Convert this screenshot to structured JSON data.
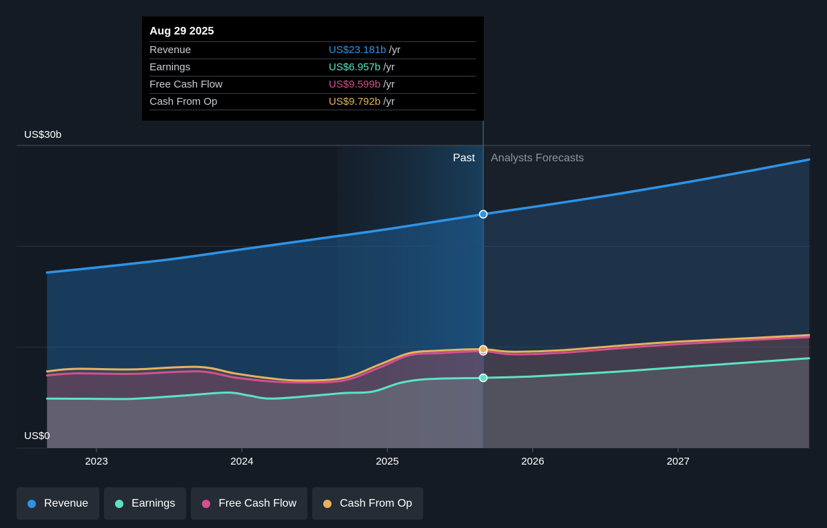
{
  "chart_data": {
    "type": "area",
    "y_axis": {
      "top_label": "US$30b",
      "bottom_label": "US$0",
      "ylim": [
        0,
        30
      ],
      "gridlines": [
        0,
        10,
        20,
        30
      ]
    },
    "x_axis": {
      "tick_labels": [
        "2023",
        "2024",
        "2025",
        "2026",
        "2027"
      ],
      "ticks": [
        2023,
        2024,
        2025,
        2026,
        2027
      ]
    },
    "divider": {
      "past_label": "Past",
      "forecast_label": "Analysts Forecasts",
      "x": 2025.66
    },
    "series": [
      {
        "name": "Revenue",
        "color": "#2e93e6",
        "points": [
          [
            2022.66,
            17.4
          ],
          [
            2023.0,
            17.9
          ],
          [
            2023.5,
            18.7
          ],
          [
            2024.0,
            19.7
          ],
          [
            2024.5,
            20.7
          ],
          [
            2025.0,
            21.7
          ],
          [
            2025.66,
            23.18
          ],
          [
            2026.0,
            23.9
          ],
          [
            2026.5,
            25.0
          ],
          [
            2027.0,
            26.2
          ],
          [
            2027.5,
            27.5
          ],
          [
            2027.9,
            28.6
          ]
        ]
      },
      {
        "name": "Earnings",
        "color": "#5be3c4",
        "points": [
          [
            2022.66,
            4.9
          ],
          [
            2023.0,
            4.88
          ],
          [
            2023.25,
            4.88
          ],
          [
            2023.6,
            5.2
          ],
          [
            2023.9,
            5.5
          ],
          [
            2024.05,
            5.2
          ],
          [
            2024.2,
            4.9
          ],
          [
            2024.5,
            5.2
          ],
          [
            2024.7,
            5.45
          ],
          [
            2024.9,
            5.6
          ],
          [
            2025.1,
            6.5
          ],
          [
            2025.3,
            6.85
          ],
          [
            2025.66,
            6.96
          ],
          [
            2026.0,
            7.1
          ],
          [
            2026.5,
            7.5
          ],
          [
            2027.0,
            8.0
          ],
          [
            2027.5,
            8.5
          ],
          [
            2027.9,
            8.9
          ]
        ]
      },
      {
        "name": "Free Cash Flow",
        "color": "#d64f8e",
        "points": [
          [
            2022.66,
            7.2
          ],
          [
            2022.85,
            7.4
          ],
          [
            2023.25,
            7.35
          ],
          [
            2023.7,
            7.6
          ],
          [
            2023.95,
            7.0
          ],
          [
            2024.2,
            6.6
          ],
          [
            2024.4,
            6.5
          ],
          [
            2024.7,
            6.7
          ],
          [
            2024.95,
            8.0
          ],
          [
            2025.15,
            9.2
          ],
          [
            2025.35,
            9.4
          ],
          [
            2025.66,
            9.6
          ],
          [
            2025.85,
            9.3
          ],
          [
            2026.2,
            9.45
          ],
          [
            2026.6,
            9.9
          ],
          [
            2027.0,
            10.3
          ],
          [
            2027.5,
            10.7
          ],
          [
            2027.9,
            11.0
          ]
        ]
      },
      {
        "name": "Cash From Op",
        "color": "#e8b25d",
        "points": [
          [
            2022.66,
            7.6
          ],
          [
            2022.85,
            7.85
          ],
          [
            2023.25,
            7.8
          ],
          [
            2023.7,
            8.05
          ],
          [
            2023.95,
            7.4
          ],
          [
            2024.2,
            6.9
          ],
          [
            2024.4,
            6.7
          ],
          [
            2024.7,
            6.95
          ],
          [
            2024.95,
            8.3
          ],
          [
            2025.15,
            9.4
          ],
          [
            2025.35,
            9.65
          ],
          [
            2025.66,
            9.79
          ],
          [
            2025.85,
            9.55
          ],
          [
            2026.2,
            9.7
          ],
          [
            2026.6,
            10.15
          ],
          [
            2027.0,
            10.55
          ],
          [
            2027.5,
            10.9
          ],
          [
            2027.9,
            11.2
          ]
        ]
      }
    ]
  },
  "tooltip": {
    "date": "Aug 29 2025",
    "rows": [
      {
        "label": "Revenue",
        "value": "US$23.181b",
        "unit": "/yr",
        "color": "#2e93e6"
      },
      {
        "label": "Earnings",
        "value": "US$6.957b",
        "unit": "/yr",
        "color": "#5be3c4"
      },
      {
        "label": "Free Cash Flow",
        "value": "US$9.599b",
        "unit": "/yr",
        "color": "#d64f8e"
      },
      {
        "label": "Cash From Op",
        "value": "US$9.792b",
        "unit": "/yr",
        "color": "#e8b25d"
      }
    ]
  },
  "legend": [
    {
      "label": "Revenue",
      "color": "#2e93e6"
    },
    {
      "label": "Earnings",
      "color": "#5be3c4"
    },
    {
      "label": "Free Cash Flow",
      "color": "#d64f8e"
    },
    {
      "label": "Cash From Op",
      "color": "#e8b25d"
    }
  ]
}
